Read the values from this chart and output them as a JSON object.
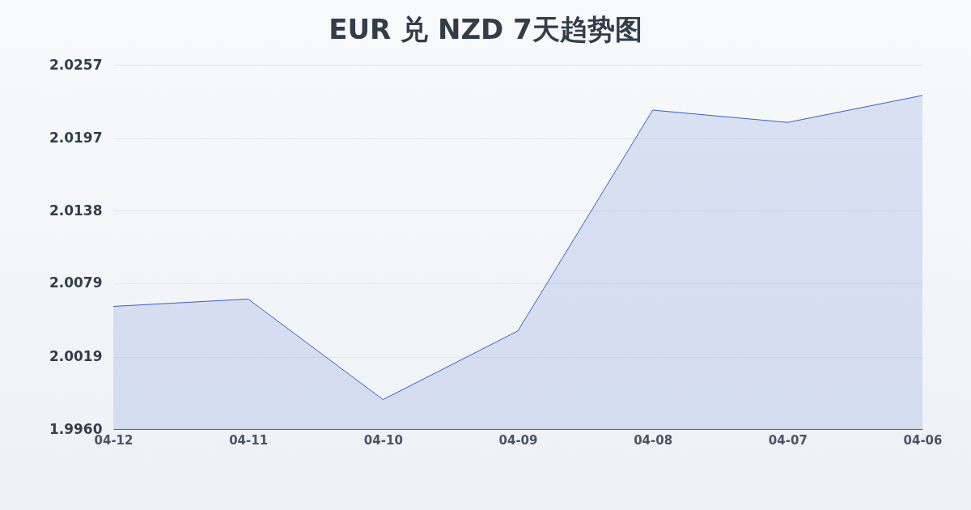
{
  "chart_data": {
    "type": "area",
    "title": "EUR 兑 NZD 7天趋势图",
    "categories": [
      "04-12",
      "04-11",
      "04-10",
      "04-09",
      "04-08",
      "04-07",
      "04-06"
    ],
    "series": [
      {
        "color": "#3461c9",
        "values": [
          2.006,
          2.0066,
          1.9984,
          2.004,
          2.022,
          2.021,
          2.0232
        ]
      }
    ],
    "ylim": [
      1.996,
      2.0257
    ],
    "yticks": [
      {
        "value": 1.996,
        "label": "1.9960"
      },
      2.0019,
      2.0079,
      2.0138,
      2.0197,
      2.0257
    ],
    "grid": "y"
  }
}
